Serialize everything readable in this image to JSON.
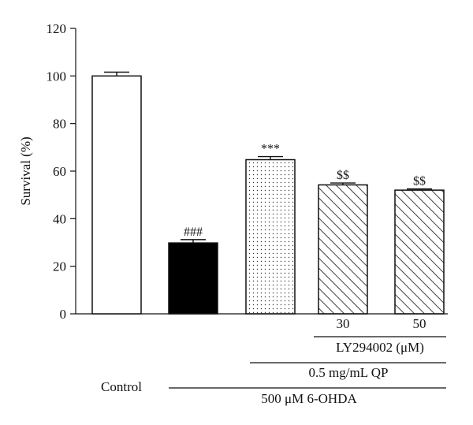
{
  "chart_data": {
    "type": "bar",
    "categories": [
      "Control",
      "6-OHDA",
      "QP",
      "LY 30",
      "LY 50"
    ],
    "values": [
      100,
      29.8,
      64.8,
      54.2,
      52.0
    ],
    "errors": [
      1.6,
      1.4,
      1.3,
      0.8,
      0.5
    ],
    "fills": [
      "white",
      "black",
      "dotted",
      "hatched",
      "hatched"
    ],
    "annotations": [
      "",
      "###",
      "***",
      "$$",
      "$$"
    ],
    "ylabel": "Survival (%)",
    "ylim": [
      0,
      120
    ],
    "yticks": [
      0,
      20,
      40,
      60,
      80,
      100,
      120
    ],
    "grid": false,
    "xlabel_groups": {
      "control_label": "Control",
      "ly_doses": [
        "30",
        "50"
      ],
      "ly_label": "LY294002 (μM)",
      "qp_label": "0.5 mg/mL QP",
      "ohda_label": "500 μM 6-OHDA"
    }
  }
}
